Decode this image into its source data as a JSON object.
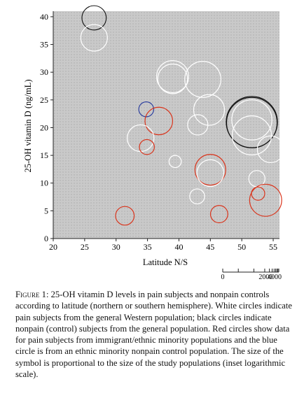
{
  "chart_data": {
    "type": "scatter",
    "xlabel": "Latitude N/S",
    "ylabel": "25-OH vitamin D (ng/mL)",
    "xlim": [
      20,
      56
    ],
    "ylim": [
      0,
      41
    ],
    "x_ticks": [
      "20",
      "25",
      "30",
      "35",
      "40",
      "45",
      "50",
      "55"
    ],
    "y_ticks": [
      "0",
      "5",
      "10",
      "15",
      "20",
      "25",
      "30",
      "35",
      "40"
    ],
    "background": "#c8c8c8",
    "grid": "dotted",
    "size_scale": "logarithmic",
    "colors": {
      "white": "#ffffff",
      "black": "#111111",
      "red": "#d9341c",
      "blue": "#2b3e9e"
    },
    "legend": {
      "ticks": [
        "0",
        "2000",
        "4000"
      ],
      "scale": "logarithmic"
    },
    "points": [
      {
        "x": 26.5,
        "y": 39.8,
        "n": 40,
        "color": "black"
      },
      {
        "x": 26.5,
        "y": 36.2,
        "n": 60,
        "color": "white"
      },
      {
        "x": 39.0,
        "y": 29.2,
        "n": 150,
        "color": "white"
      },
      {
        "x": 39.0,
        "y": 28.8,
        "n": 100,
        "color": "white"
      },
      {
        "x": 43.8,
        "y": 28.7,
        "n": 300,
        "color": "white"
      },
      {
        "x": 34.8,
        "y": 23.3,
        "n": 8,
        "color": "blue"
      },
      {
        "x": 44.8,
        "y": 23.2,
        "n": 120,
        "color": "white"
      },
      {
        "x": 51.6,
        "y": 21.0,
        "n": 4000,
        "color": "black"
      },
      {
        "x": 51.6,
        "y": 20.9,
        "n": 3500,
        "color": "black"
      },
      {
        "x": 51.6,
        "y": 21.4,
        "n": 600,
        "color": "white"
      },
      {
        "x": 51.6,
        "y": 18.6,
        "n": 500,
        "color": "white"
      },
      {
        "x": 36.8,
        "y": 21.2,
        "n": 70,
        "color": "red"
      },
      {
        "x": 43.0,
        "y": 20.5,
        "n": 20,
        "color": "white"
      },
      {
        "x": 33.9,
        "y": 18.1,
        "n": 60,
        "color": "white"
      },
      {
        "x": 54.6,
        "y": 16.1,
        "n": 60,
        "color": "white"
      },
      {
        "x": 34.9,
        "y": 16.5,
        "n": 8,
        "color": "red"
      },
      {
        "x": 39.4,
        "y": 13.9,
        "n": 5,
        "color": "white"
      },
      {
        "x": 45.0,
        "y": 12.4,
        "n": 120,
        "color": "red"
      },
      {
        "x": 45.0,
        "y": 11.8,
        "n": 60,
        "color": "white"
      },
      {
        "x": 52.4,
        "y": 10.8,
        "n": 10,
        "color": "white"
      },
      {
        "x": 52.6,
        "y": 8.1,
        "n": 6,
        "color": "red"
      },
      {
        "x": 42.9,
        "y": 7.6,
        "n": 8,
        "color": "white"
      },
      {
        "x": 53.8,
        "y": 6.9,
        "n": 150,
        "color": "red"
      },
      {
        "x": 46.4,
        "y": 4.4,
        "n": 12,
        "color": "red"
      },
      {
        "x": 31.4,
        "y": 4.1,
        "n": 15,
        "color": "red"
      }
    ]
  },
  "caption": {
    "label": "Figure 1:",
    "text": " 25-OH vitamin D levels in pain subjects and nonpain controls according to latitude (northern or southern hemisphere). White circles indicate pain subjects from the general Western population; black circles indicate nonpain (control) subjects from the general population. Red circles show data for pain subjects from immigrant/ethnic minority populations and the blue circle is from an ethnic minority nonpain control population. The size of the symbol is proportional to the size of the study populations (inset logarithmic scale)."
  }
}
